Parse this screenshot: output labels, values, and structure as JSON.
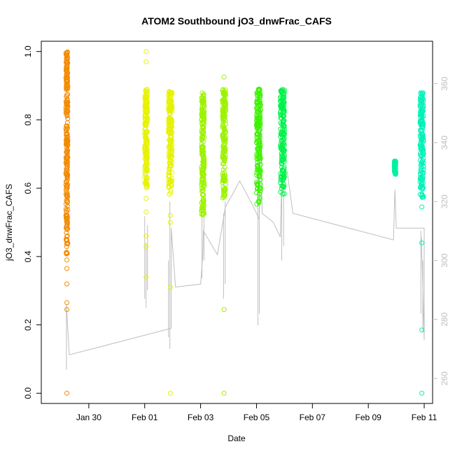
{
  "chart_data": {
    "type": "scatter",
    "title": "ATOM2 Southbound jO3_dnwFrac_CAFS",
    "xlabel": "Date",
    "ylabel": "jO3_dnwFrac_CAFS",
    "x_ticks": [
      "Jan 30",
      "Feb 01",
      "Feb 03",
      "Feb 05",
      "Feb 07",
      "Feb 09",
      "Feb 11"
    ],
    "x_tick_days": [
      30,
      32,
      34,
      36,
      38,
      40,
      42
    ],
    "xlim_days": [
      28.3,
      42.3
    ],
    "y_ticks": [
      "0.0",
      "0.2",
      "0.4",
      "0.6",
      "0.8",
      "1.0"
    ],
    "ylim": [
      -0.03,
      1.03
    ],
    "y2_ticks": [
      "260",
      "280",
      "300",
      "320",
      "340",
      "360"
    ],
    "y2lim": [
      251.5,
      374.4
    ],
    "grid": false,
    "series": [
      {
        "color": "#F28A00",
        "x_days": [
          29.18,
          29.25
        ],
        "y_band": [
          0.4,
          1.0
        ],
        "outliers": [
          0.0,
          0.245,
          0.265,
          0.32,
          0.365,
          0.39,
          0.45,
          0.5,
          0.53
        ]
      },
      {
        "color": "#E6F200",
        "x_days": [
          32.0,
          32.1
        ],
        "y_band": [
          0.6,
          0.89
        ],
        "outliers": [
          0.34,
          0.43,
          0.46,
          0.53,
          0.57,
          0.97,
          1.0
        ]
      },
      {
        "color": "#E6F200",
        "x_days": [
          32.85,
          32.98
        ],
        "y_band": [
          0.58,
          0.89
        ],
        "outliers": [
          0.0,
          0.31,
          0.5,
          0.52
        ]
      },
      {
        "color": "#9CF200",
        "x_days": [
          34.03,
          34.13
        ],
        "y_band": [
          0.52,
          0.88
        ],
        "outliers": []
      },
      {
        "color": "#9CF200",
        "x_days": [
          34.78,
          34.9
        ],
        "y_band": [
          0.57,
          0.89
        ],
        "outliers": [
          0.0,
          0.245,
          0.925
        ]
      },
      {
        "color": "#3CF200",
        "x_days": [
          36.0,
          36.15
        ],
        "y_band": [
          0.55,
          0.89
        ],
        "outliers": [
          0.8
        ]
      },
      {
        "color": "#00F24A",
        "x_days": [
          36.85,
          37.0
        ],
        "y_band": [
          0.58,
          0.89
        ],
        "outliers": []
      },
      {
        "color": "#00F2A0",
        "x_days": [
          40.93,
          40.98
        ],
        "y_band": [
          0.64,
          0.68
        ],
        "outliers": []
      },
      {
        "color": "#00F2B8",
        "x_days": [
          41.85,
          41.98
        ],
        "y_band": [
          0.57,
          0.88
        ],
        "outliers": [
          0.0,
          0.185,
          0.44,
          0.545
        ]
      }
    ],
    "line_series": {
      "color": "#BEBEBE",
      "points": [
        [
          29.2,
          263
        ],
        [
          29.2,
          285
        ],
        [
          29.3,
          268
        ],
        [
          32.95,
          277
        ],
        [
          32.95,
          311
        ],
        [
          33.1,
          291
        ],
        [
          34.0,
          292
        ],
        [
          34.08,
          302
        ],
        [
          34.1,
          310
        ],
        [
          34.6,
          302
        ],
        [
          34.85,
          316
        ],
        [
          34.88,
          318
        ],
        [
          35.4,
          327
        ],
        [
          35.9,
          318
        ],
        [
          36.1,
          314
        ],
        [
          36.15,
          352
        ],
        [
          36.2,
          316
        ],
        [
          36.6,
          313
        ],
        [
          36.85,
          308
        ],
        [
          36.9,
          327
        ],
        [
          37.1,
          330
        ],
        [
          37.3,
          316
        ],
        [
          40.9,
          307
        ],
        [
          40.95,
          324
        ],
        [
          41.0,
          311
        ],
        [
          42.0,
          311
        ],
        [
          42.0,
          273
        ],
        [
          41.9,
          308
        ]
      ],
      "spikes": [
        [
          32.0,
          287,
          315
        ],
        [
          32.05,
          284,
          306
        ],
        [
          32.1,
          290,
          312
        ],
        [
          32.85,
          274,
          300
        ],
        [
          32.9,
          270,
          320
        ],
        [
          34.05,
          294,
          318
        ],
        [
          34.12,
          300,
          320
        ],
        [
          34.82,
          287,
          316
        ],
        [
          34.88,
          292,
          320
        ],
        [
          36.05,
          278,
          325
        ],
        [
          36.1,
          282,
          330
        ],
        [
          36.9,
          300,
          322
        ],
        [
          36.97,
          305,
          325
        ],
        [
          41.88,
          282,
          310
        ],
        [
          41.95,
          276,
          300
        ]
      ]
    }
  }
}
